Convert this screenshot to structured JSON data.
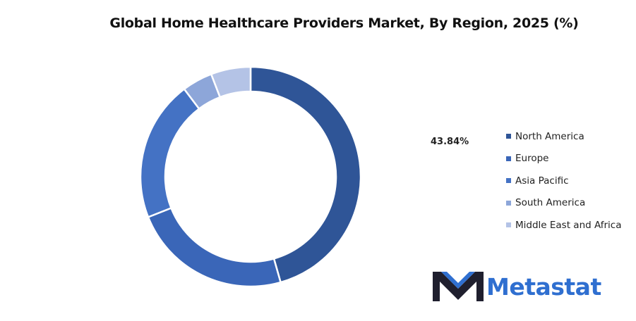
{
  "chart_data": {
    "type": "pie",
    "donut": true,
    "title": "Global Home Healthcare Providers Market, By Region, 2025 (%)",
    "categories": [
      "North America",
      "Europe",
      "Asia Pacific",
      "South America",
      "Middle East and Africa"
    ],
    "values": [
      43.84,
      22.5,
      19.9,
      4.3,
      5.6
    ],
    "colors": [
      "#2f5597",
      "#3a66b8",
      "#4472c4",
      "#8da6d9",
      "#b4c3e6"
    ],
    "data_labels": [
      {
        "category": "North America",
        "text": "43.84%"
      }
    ],
    "legend_position": "right"
  },
  "logo": {
    "text": "Metastat",
    "color": "#2f6fd0"
  }
}
